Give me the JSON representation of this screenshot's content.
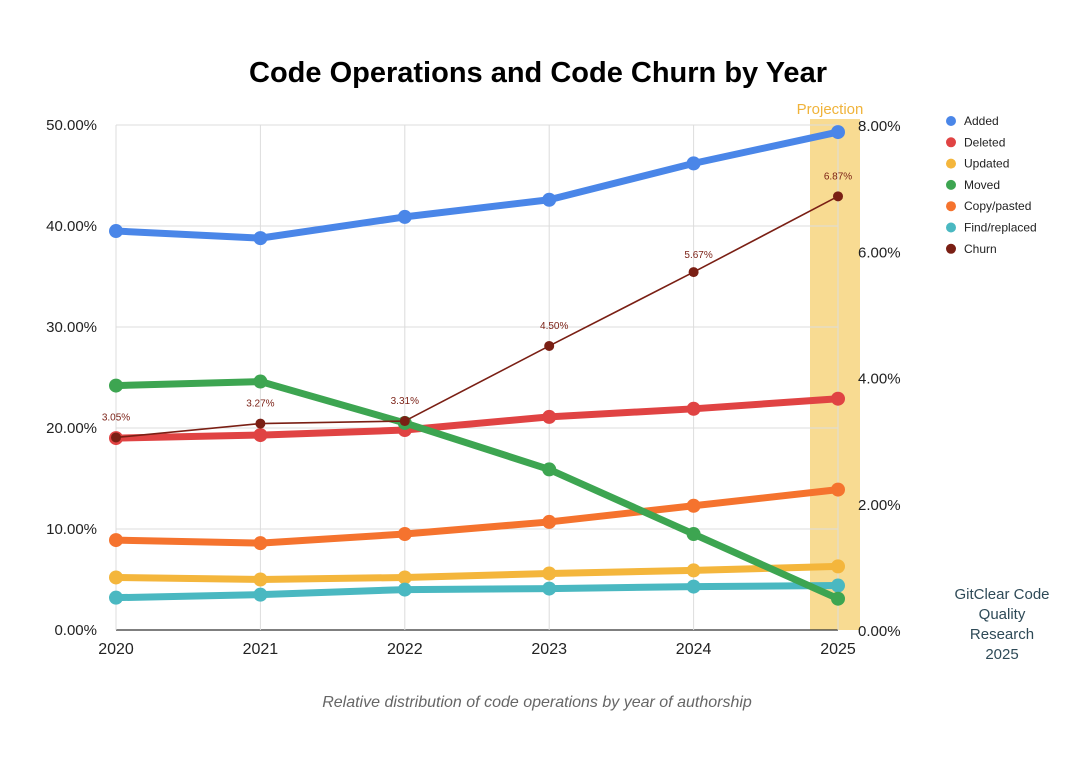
{
  "chart_data": {
    "type": "line",
    "title": "Code Operations and Code Churn by Year",
    "caption": "Relative distribution of code operations by year of authorship",
    "credit": [
      "GitClear Code",
      "Quality",
      "Research",
      "2025"
    ],
    "projection_label": "Projection",
    "x": [
      "2020",
      "2021",
      "2022",
      "2023",
      "2024",
      "2025"
    ],
    "y_left": {
      "min": 0,
      "max": 50,
      "ticks": [
        "0.00%",
        "10.00%",
        "20.00%",
        "30.00%",
        "40.00%",
        "50.00%"
      ]
    },
    "y_right": {
      "min": 0,
      "max": 8,
      "ticks": [
        "0.00%",
        "2.00%",
        "4.00%",
        "6.00%",
        "8.00%"
      ]
    },
    "series": [
      {
        "name": "Added",
        "axis": "left",
        "color": "#4a86e8",
        "values": [
          39.5,
          38.8,
          40.9,
          42.6,
          46.2,
          49.3
        ]
      },
      {
        "name": "Deleted",
        "axis": "left",
        "color": "#e04343",
        "values": [
          19.0,
          19.3,
          19.8,
          21.1,
          21.9,
          22.9
        ]
      },
      {
        "name": "Updated",
        "axis": "left",
        "color": "#f4b63c",
        "values": [
          5.2,
          5.0,
          5.2,
          5.6,
          5.9,
          6.3
        ]
      },
      {
        "name": "Moved",
        "axis": "left",
        "color": "#3da551",
        "values": [
          24.2,
          24.6,
          20.5,
          15.9,
          9.5,
          3.1
        ]
      },
      {
        "name": "Copy/pasted",
        "axis": "left",
        "color": "#f5732e",
        "values": [
          8.9,
          8.6,
          9.5,
          10.7,
          12.3,
          13.9
        ]
      },
      {
        "name": "Find/replaced",
        "axis": "left",
        "color": "#4ab8c1",
        "values": [
          3.2,
          3.5,
          4.0,
          4.1,
          4.3,
          4.4
        ]
      },
      {
        "name": "Churn",
        "axis": "right",
        "color": "#7a1f14",
        "values": [
          3.05,
          3.27,
          3.31,
          4.5,
          5.67,
          6.87
        ],
        "labels": [
          "3.05%",
          "3.27%",
          "3.31%",
          "4.50%",
          "5.67%",
          "6.87%"
        ]
      }
    ],
    "legend_position": "right"
  }
}
